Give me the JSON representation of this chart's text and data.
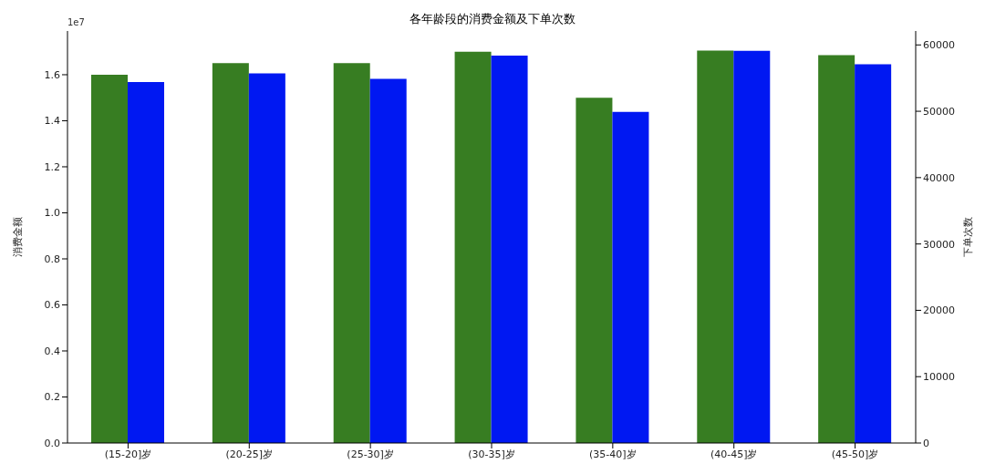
{
  "chart_data": {
    "type": "bar",
    "title": "各年龄段的消费金额及下单次数",
    "ylabel": "消费金额",
    "y2label": "下单次数",
    "categories": [
      "(15-20]岁",
      "(20-25]岁",
      "(25-30]岁",
      "(30-35]岁",
      "(35-40]岁",
      "(40-45]岁",
      "(45-50]岁"
    ],
    "series": [
      {
        "color": "#377d22",
        "values": [
          1.6,
          1.65,
          1.65,
          1.7,
          1.5,
          1.705,
          1.685
        ]
      },
      {
        "color": "#0018f2",
        "axis": "y2",
        "values": [
          54400,
          55700,
          54900,
          58400,
          49900,
          59100,
          57100
        ]
      }
    ],
    "ylim": [
      0,
      1.79
    ],
    "yticks": [
      {
        "value": 0,
        "label": "0.0"
      },
      0.2,
      0.4,
      0.6,
      0.8,
      {
        "value": 1,
        "label": "1.0"
      },
      1.2,
      1.4,
      1.6
    ],
    "y2lim": [
      0,
      62100
    ],
    "y2ticks": [
      0,
      10000,
      20000,
      30000,
      40000,
      50000,
      60000
    ],
    "annotations": [
      "1e7"
    ],
    "grid": false,
    "legend": false
  }
}
